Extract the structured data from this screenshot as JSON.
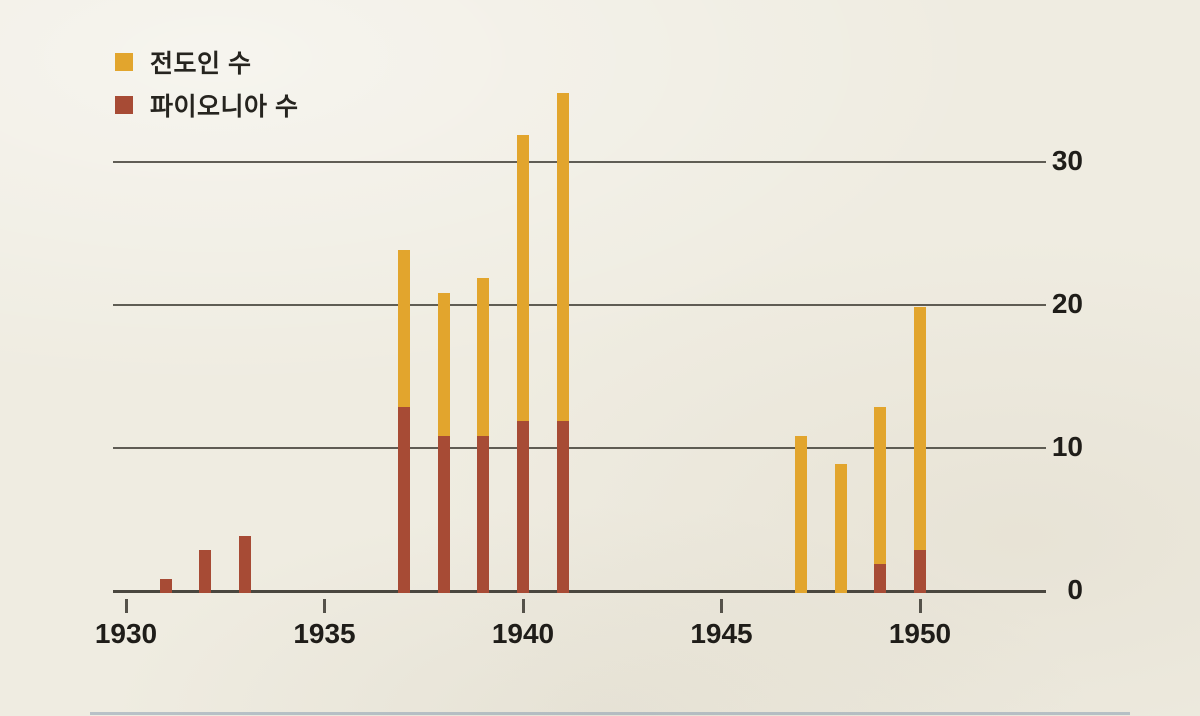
{
  "legend": {
    "items": [
      {
        "label": "전도인 수",
        "color": "#e2a52d"
      },
      {
        "label": "파이오니아 수",
        "color": "#a74b35"
      }
    ]
  },
  "chart_data": {
    "type": "bar",
    "title": "",
    "xlabel": "",
    "ylabel": "",
    "grid": "horizontal",
    "legend_position": "top-left",
    "y_axis_side": "right",
    "ylim": [
      0,
      35
    ],
    "y_ticks": [
      0,
      10,
      20,
      30
    ],
    "x_ticks": [
      1930,
      1935,
      1940,
      1945,
      1950
    ],
    "x": [
      1931,
      1932,
      1933,
      1937,
      1938,
      1939,
      1940,
      1941,
      1947,
      1948,
      1949,
      1950
    ],
    "series": [
      {
        "name": "전도인 수",
        "color": "#e2a52d",
        "values": [
          1,
          3,
          4,
          24,
          21,
          22,
          32,
          35,
          11,
          9,
          13,
          20
        ]
      },
      {
        "name": "파이오니아 수",
        "color": "#a74b35",
        "values": [
          1,
          3,
          4,
          13,
          11,
          11,
          12,
          12,
          0,
          0,
          2,
          3
        ]
      }
    ]
  },
  "colors": {
    "background": "#efece1",
    "gridline": "#45433b",
    "text": "#1f1d19"
  }
}
